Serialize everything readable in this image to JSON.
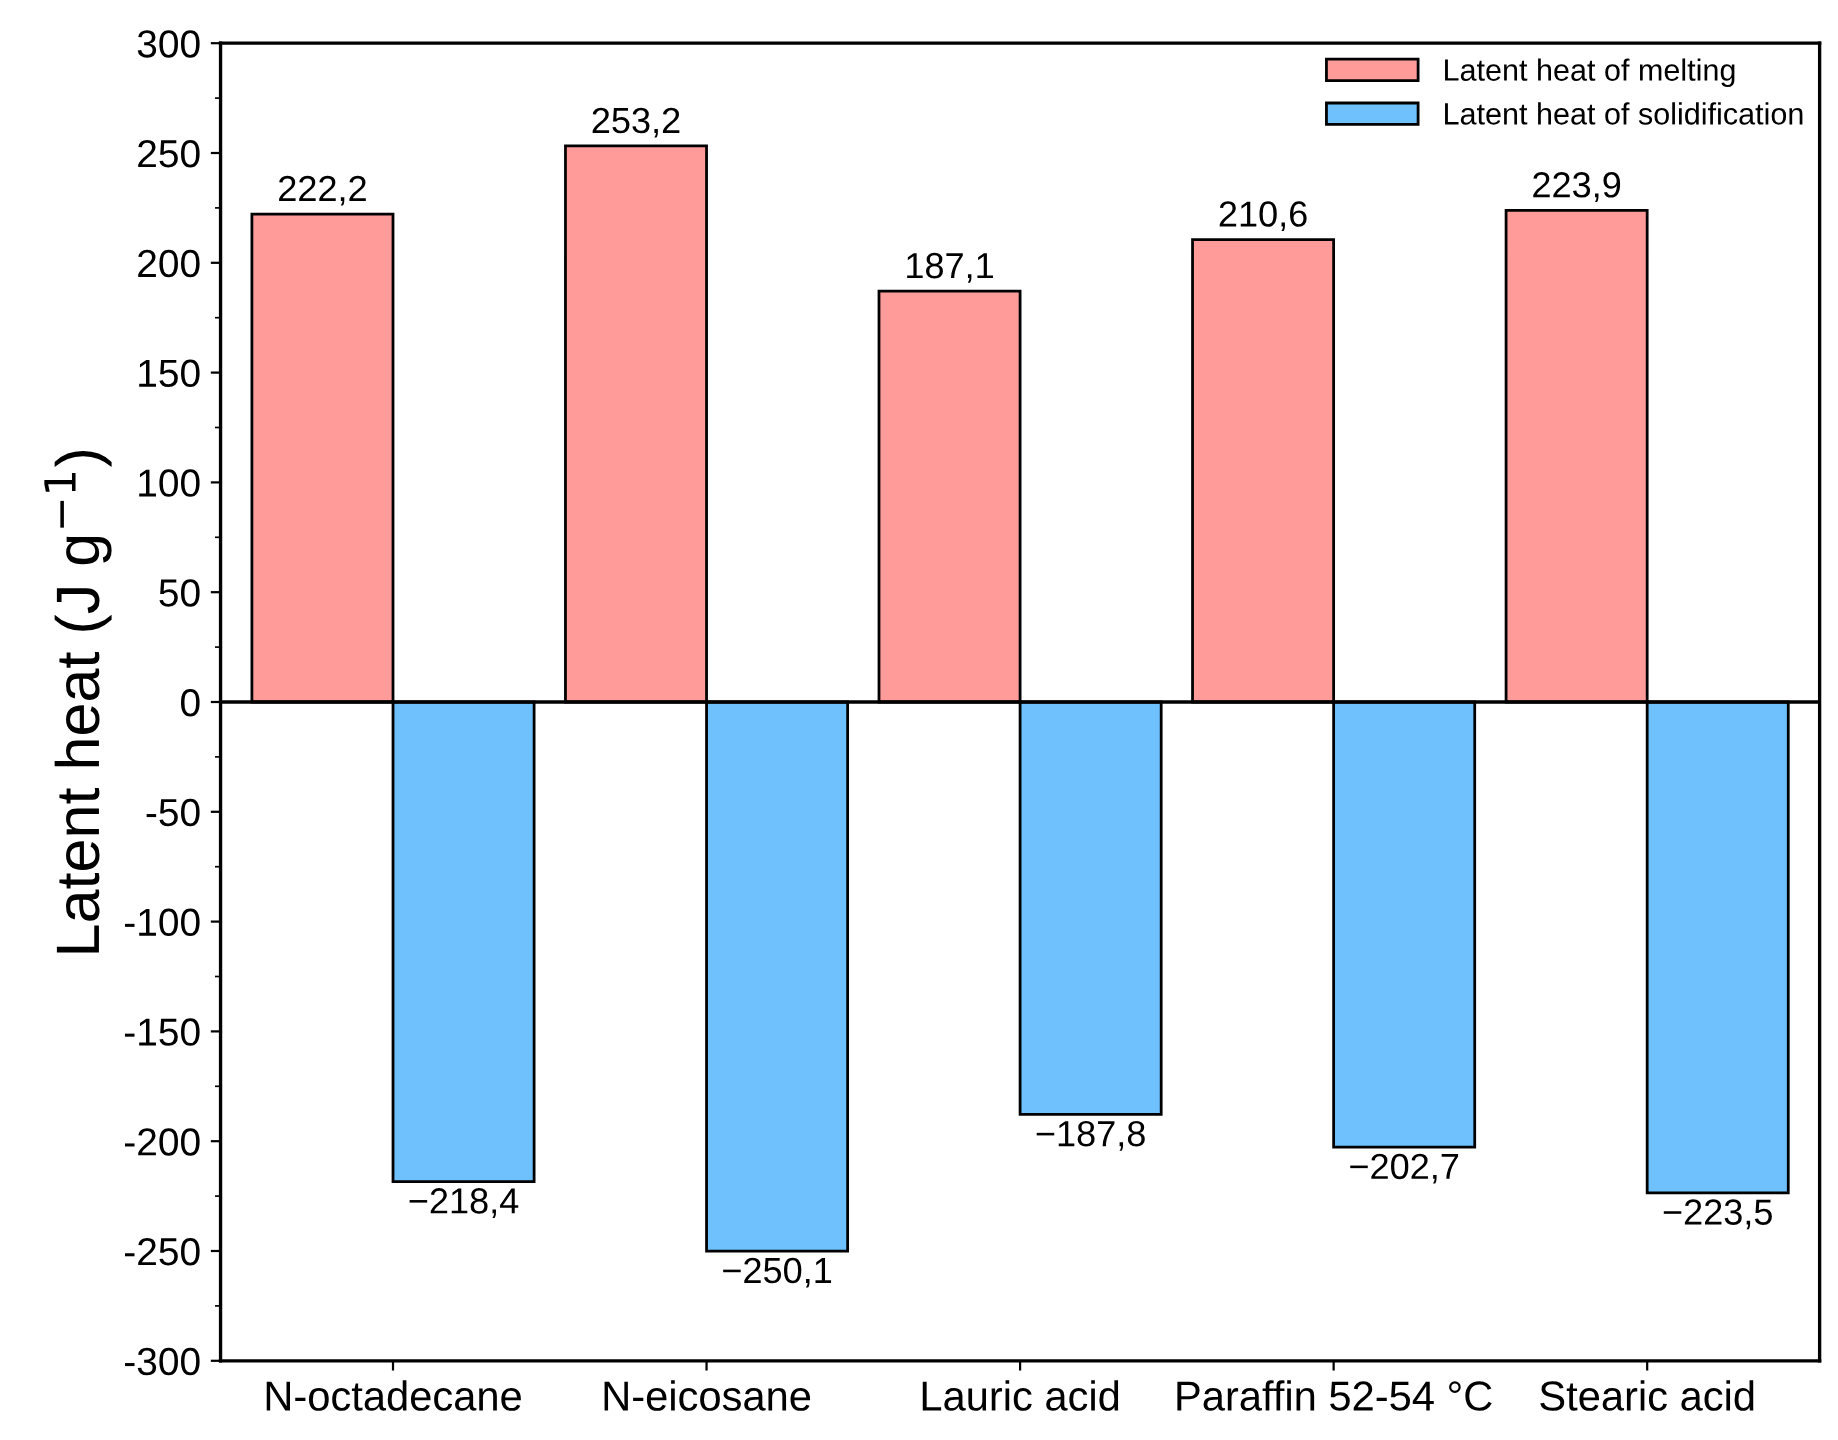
{
  "chart_data": {
    "type": "bar",
    "categories": [
      "N-octadecane",
      "N-eicosane",
      "Lauric acid",
      "Paraffin 52-54 °C",
      "Stearic acid"
    ],
    "series": [
      {
        "name": "Latent heat of melting",
        "color": "#ff9c9a",
        "values": [
          222.2,
          253.2,
          187.1,
          210.6,
          223.9
        ],
        "value_labels": [
          "222,2",
          "253,2",
          "187,1",
          "210,6",
          "223,9"
        ]
      },
      {
        "name": "Latent heat of solidification",
        "color": "#6ec1fd",
        "values": [
          -218.4,
          -250.1,
          -187.8,
          -202.7,
          -223.5
        ],
        "value_labels": [
          "−218,4",
          "−250,1",
          "−187,8",
          "−202,7",
          "−223,5"
        ]
      }
    ],
    "ylabel": "Latent heat (J g$^{−1}$)",
    "ylim": [
      -300,
      300
    ],
    "yticks": [
      -300,
      -250,
      -200,
      -150,
      -100,
      -50,
      0,
      50,
      100,
      150,
      200,
      250,
      300
    ],
    "ref_lines": [
      {
        "axis": "y",
        "value": 0,
        "color": "#000000"
      }
    ],
    "legend": "top right",
    "grid": false
  }
}
